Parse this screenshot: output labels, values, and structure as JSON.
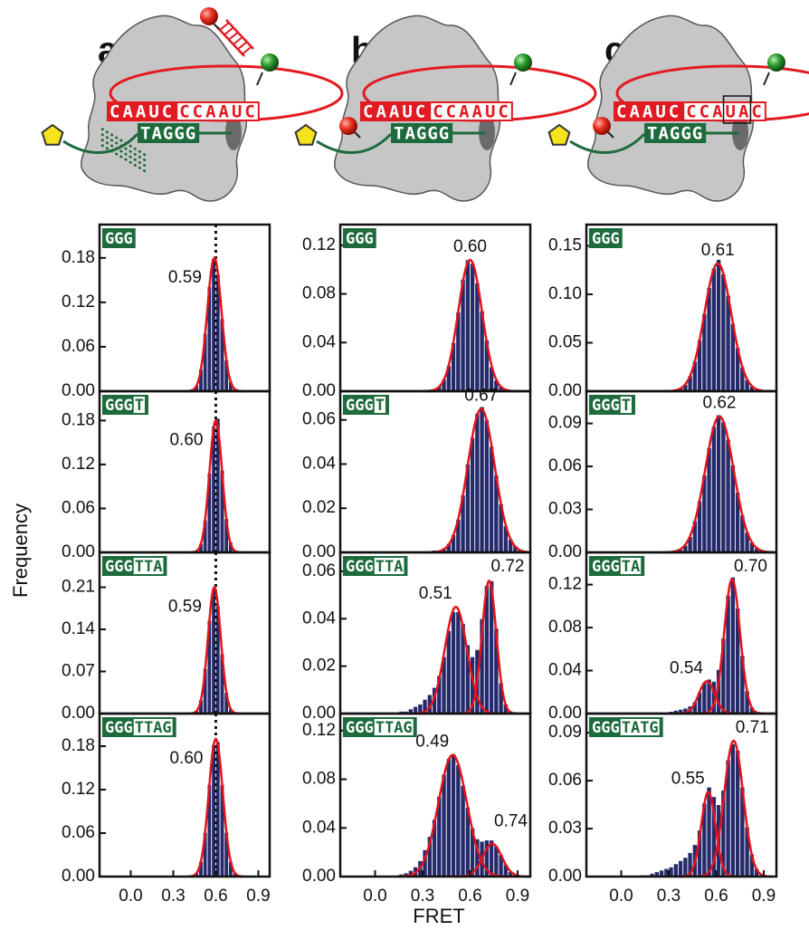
{
  "figure": {
    "xlabel": "FRET",
    "ylabel": "Frequency"
  },
  "diagrams": [
    {
      "label": "a",
      "rna_left": "CAAUC",
      "rna_right": [
        "CCAAUC"
      ],
      "dna": "TAGGG"
    },
    {
      "label": "b",
      "rna_left": "CAAUC",
      "rna_right": [
        "CCAAUC"
      ],
      "dna": "TAGGG"
    },
    {
      "label": "c",
      "rna_left": "CAAUC",
      "rna_right": [
        "CCA",
        "UA",
        "C"
      ],
      "dna": "TAGGG"
    }
  ],
  "chart_data": [
    {
      "type": "histogram",
      "tag": "GGG",
      "xlim": [
        -0.22,
        0.98
      ],
      "ylim": [
        0,
        0.225
      ],
      "yticks": [
        {
          "value": 0,
          "label": "0.00"
        },
        0.06,
        0.12,
        0.18
      ],
      "color": "#252a6b",
      "fit_color": "#e3141b",
      "reference_line": 0.6,
      "bins": [
        0.39,
        0.42,
        0.45,
        0.48,
        0.51,
        0.54,
        0.57,
        0.6,
        0.63,
        0.66,
        0.69,
        0.72,
        0.75,
        0.78
      ],
      "counts": [
        0.001,
        0.002,
        0.008,
        0.03,
        0.078,
        0.141,
        0.179,
        0.158,
        0.098,
        0.042,
        0.013,
        0.003,
        0.001
      ],
      "fits": [
        {
          "center": 0.59,
          "amplitude": 0.18,
          "sigma": 0.05,
          "label": "0.59"
        }
      ]
    },
    {
      "type": "histogram",
      "tag": "GGG",
      "extension": "T",
      "xlim": [
        -0.22,
        0.98
      ],
      "ylim": [
        0,
        0.22
      ],
      "yticks": [
        {
          "value": 0,
          "label": "0.00"
        },
        0.06,
        0.12,
        0.18
      ],
      "color": "#252a6b",
      "fit_color": "#e3141b",
      "reference_line": 0.6,
      "bins": [
        0.42,
        0.45,
        0.48,
        0.51,
        0.54,
        0.57,
        0.6,
        0.63,
        0.66,
        0.69,
        0.72,
        0.75,
        0.78
      ],
      "counts": [
        0.001,
        0.003,
        0.012,
        0.044,
        0.108,
        0.172,
        0.183,
        0.112,
        0.046,
        0.014,
        0.003,
        0.001
      ],
      "fits": [
        {
          "center": 0.6,
          "amplitude": 0.18,
          "sigma": 0.045,
          "label": "0.60"
        }
      ]
    },
    {
      "type": "histogram",
      "tag": "GGG",
      "extension": "TTA",
      "xlim": [
        -0.22,
        0.98
      ],
      "ylim": [
        0,
        0.268
      ],
      "yticks": [
        {
          "value": 0,
          "label": "0.00"
        },
        0.07,
        0.14,
        0.21
      ],
      "color": "#252a6b",
      "fit_color": "#e3141b",
      "reference_line": 0.6,
      "bins": [
        0.42,
        0.45,
        0.48,
        0.51,
        0.54,
        0.57,
        0.6,
        0.63,
        0.66,
        0.69,
        0.72,
        0.75
      ],
      "counts": [
        0.001,
        0.005,
        0.023,
        0.075,
        0.155,
        0.208,
        0.179,
        0.099,
        0.035,
        0.008,
        0.001
      ],
      "fits": [
        {
          "center": 0.59,
          "amplitude": 0.21,
          "sigma": 0.045,
          "label": "0.59"
        }
      ]
    },
    {
      "type": "histogram",
      "tag": "GGG",
      "extension": "TTAG",
      "xlim": [
        -0.22,
        0.98
      ],
      "ylim": [
        0,
        0.225
      ],
      "yticks": [
        {
          "value": 0,
          "label": "0.00"
        },
        0.06,
        0.12,
        0.18
      ],
      "xticks": [
        {
          "value": 0,
          "label": "0.0"
        },
        0.3,
        0.6,
        0.9
      ],
      "color": "#252a6b",
      "fit_color": "#e3141b",
      "reference_line": 0.6,
      "bins": [
        0.42,
        0.45,
        0.48,
        0.51,
        0.54,
        0.57,
        0.6,
        0.63,
        0.66,
        0.69,
        0.72,
        0.75,
        0.78
      ],
      "counts": [
        0.001,
        0.005,
        0.021,
        0.061,
        0.127,
        0.182,
        0.186,
        0.127,
        0.061,
        0.021,
        0.005,
        0.001
      ],
      "fits": [
        {
          "center": 0.6,
          "amplitude": 0.19,
          "sigma": 0.05,
          "label": "0.60"
        }
      ]
    },
    {
      "type": "histogram",
      "tag": "GGG",
      "xlim": [
        -0.22,
        0.98
      ],
      "ylim": [
        0,
        0.137
      ],
      "yticks": [
        {
          "value": 0,
          "label": "0.00"
        },
        0.04,
        0.08,
        0.12
      ],
      "color": "#252a6b",
      "fit_color": "#e3141b",
      "bins": [
        0.33,
        0.36,
        0.39,
        0.42,
        0.45,
        0.48,
        0.51,
        0.54,
        0.57,
        0.6,
        0.63,
        0.66,
        0.69,
        0.72,
        0.75,
        0.78,
        0.81,
        0.84,
        0.87
      ],
      "counts": [
        0.001,
        0.001,
        0.004,
        0.01,
        0.021,
        0.04,
        0.065,
        0.092,
        0.108,
        0.105,
        0.089,
        0.066,
        0.042,
        0.02,
        0.009,
        0.004,
        0.001,
        0.001
      ],
      "fits": [
        {
          "center": 0.6,
          "amplitude": 0.108,
          "sigma": 0.075,
          "label": "0.60"
        }
      ]
    },
    {
      "type": "histogram",
      "tag": "GGG",
      "extension": "T",
      "xlim": [
        -0.22,
        0.98
      ],
      "ylim": [
        0,
        0.073
      ],
      "yticks": [
        {
          "value": 0,
          "label": "0.00"
        },
        0.02,
        0.04,
        0.06
      ],
      "color": "#252a6b",
      "fit_color": "#e3141b",
      "bins": [
        0.36,
        0.39,
        0.42,
        0.45,
        0.48,
        0.51,
        0.54,
        0.57,
        0.6,
        0.63,
        0.66,
        0.69,
        0.72,
        0.75,
        0.78,
        0.81,
        0.84,
        0.87,
        0.9,
        0.93
      ],
      "counts": [
        0.001,
        0.001,
        0.002,
        0.004,
        0.008,
        0.015,
        0.026,
        0.04,
        0.052,
        0.063,
        0.066,
        0.06,
        0.048,
        0.035,
        0.022,
        0.012,
        0.006,
        0.003,
        0.001
      ],
      "fits": [
        {
          "center": 0.67,
          "amplitude": 0.065,
          "sigma": 0.085,
          "label": "0.67"
        }
      ]
    },
    {
      "type": "histogram",
      "tag": "GGG",
      "extension": "TTA",
      "xlim": [
        -0.22,
        0.98
      ],
      "ylim": [
        0,
        0.068
      ],
      "yticks": [
        {
          "value": 0,
          "label": "0.00"
        },
        0.02,
        0.04,
        0.06
      ],
      "color": "#252a6b",
      "fit_color": "#e3141b",
      "bins": [
        0.15,
        0.18,
        0.21,
        0.24,
        0.27,
        0.3,
        0.33,
        0.36,
        0.39,
        0.42,
        0.45,
        0.48,
        0.51,
        0.54,
        0.57,
        0.6,
        0.63,
        0.66,
        0.69,
        0.72,
        0.75,
        0.78,
        0.81,
        0.84,
        0.87
      ],
      "counts": [
        0.001,
        0.001,
        0.002,
        0.003,
        0.004,
        0.006,
        0.008,
        0.011,
        0.016,
        0.024,
        0.035,
        0.043,
        0.043,
        0.038,
        0.029,
        0.024,
        0.027,
        0.04,
        0.054,
        0.056,
        0.036,
        0.013,
        0.004,
        0.001
      ],
      "fits": [
        {
          "center": 0.51,
          "amplitude": 0.045,
          "sigma": 0.07,
          "label": "0.51"
        },
        {
          "center": 0.72,
          "amplitude": 0.056,
          "sigma": 0.045,
          "label": "0.72"
        }
      ]
    },
    {
      "type": "histogram",
      "tag": "GGG",
      "extension": "TTAG",
      "xlim": [
        -0.22,
        0.98
      ],
      "ylim": [
        0,
        0.134
      ],
      "yticks": [
        {
          "value": 0,
          "label": "0.00"
        },
        0.04,
        0.08,
        0.12
      ],
      "xticks": [
        {
          "value": 0,
          "label": "0.0"
        },
        0.3,
        0.6,
        0.9
      ],
      "color": "#252a6b",
      "fit_color": "#e3141b",
      "bins": [
        0.09,
        0.12,
        0.15,
        0.18,
        0.21,
        0.24,
        0.27,
        0.3,
        0.33,
        0.36,
        0.39,
        0.42,
        0.45,
        0.48,
        0.51,
        0.54,
        0.57,
        0.6,
        0.63,
        0.66,
        0.69,
        0.72,
        0.75,
        0.78,
        0.81,
        0.84,
        0.87,
        0.9,
        0.93
      ],
      "counts": [
        0.001,
        0.001,
        0.002,
        0.003,
        0.005,
        0.008,
        0.013,
        0.022,
        0.033,
        0.047,
        0.066,
        0.084,
        0.097,
        0.101,
        0.092,
        0.075,
        0.057,
        0.04,
        0.031,
        0.029,
        0.03,
        0.03,
        0.025,
        0.018,
        0.01,
        0.004,
        0.002,
        0.001
      ],
      "fits": [
        {
          "center": 0.49,
          "amplitude": 0.1,
          "sigma": 0.09,
          "label": "0.49"
        },
        {
          "center": 0.74,
          "amplitude": 0.027,
          "sigma": 0.06,
          "label": "0.74"
        }
      ]
    },
    {
      "type": "histogram",
      "tag": "GGG",
      "xlim": [
        -0.22,
        0.98
      ],
      "ylim": [
        0,
        0.172
      ],
      "yticks": [
        {
          "value": 0,
          "label": "0.00"
        },
        0.05,
        {
          "value": 0.1,
          "label": "0.10"
        },
        0.15
      ],
      "color": "#252a6b",
      "fit_color": "#e3141b",
      "bins": [
        0.33,
        0.36,
        0.39,
        0.42,
        0.45,
        0.48,
        0.51,
        0.54,
        0.57,
        0.6,
        0.63,
        0.66,
        0.69,
        0.72,
        0.75,
        0.78,
        0.81,
        0.84,
        0.87,
        0.9
      ],
      "counts": [
        0.001,
        0.003,
        0.007,
        0.016,
        0.031,
        0.053,
        0.08,
        0.107,
        0.127,
        0.136,
        0.121,
        0.099,
        0.07,
        0.045,
        0.025,
        0.012,
        0.005,
        0.002,
        0.001
      ],
      "fits": [
        {
          "center": 0.61,
          "amplitude": 0.132,
          "sigma": 0.085,
          "label": "0.61"
        }
      ]
    },
    {
      "type": "histogram",
      "tag": "GGG",
      "extension": "T",
      "xlim": [
        -0.22,
        0.98
      ],
      "ylim": [
        0,
        0.1125
      ],
      "yticks": [
        {
          "value": 0,
          "label": "0.00"
        },
        0.03,
        0.06,
        0.09
      ],
      "color": "#252a6b",
      "fit_color": "#e3141b",
      "bins": [
        0.3,
        0.33,
        0.36,
        0.39,
        0.42,
        0.45,
        0.48,
        0.51,
        0.54,
        0.57,
        0.6,
        0.63,
        0.66,
        0.69,
        0.72,
        0.75,
        0.78,
        0.81,
        0.84,
        0.87,
        0.9,
        0.93
      ],
      "counts": [
        0.001,
        0.001,
        0.002,
        0.005,
        0.011,
        0.022,
        0.036,
        0.054,
        0.073,
        0.088,
        0.096,
        0.091,
        0.079,
        0.061,
        0.042,
        0.026,
        0.014,
        0.007,
        0.003,
        0.001,
        0.001
      ],
      "fits": [
        {
          "center": 0.62,
          "amplitude": 0.095,
          "sigma": 0.09,
          "label": "0.62"
        }
      ]
    },
    {
      "type": "histogram",
      "tag": "GGG",
      "extension": "TA",
      "xlim": [
        -0.22,
        0.98
      ],
      "ylim": [
        0,
        0.15
      ],
      "yticks": [
        {
          "value": 0,
          "label": "0.00"
        },
        0.04,
        0.08,
        0.12
      ],
      "color": "#252a6b",
      "fit_color": "#e3141b",
      "bins": [
        0.27,
        0.3,
        0.33,
        0.36,
        0.39,
        0.42,
        0.45,
        0.48,
        0.51,
        0.54,
        0.57,
        0.6,
        0.63,
        0.66,
        0.69,
        0.72,
        0.75,
        0.78,
        0.81,
        0.84,
        0.87
      ],
      "counts": [
        0.001,
        0.002,
        0.003,
        0.004,
        0.005,
        0.007,
        0.011,
        0.02,
        0.029,
        0.032,
        0.03,
        0.041,
        0.07,
        0.11,
        0.127,
        0.098,
        0.054,
        0.021,
        0.006,
        0.001
      ],
      "fits": [
        {
          "center": 0.54,
          "amplitude": 0.03,
          "sigma": 0.05,
          "label": "0.54"
        },
        {
          "center": 0.7,
          "amplitude": 0.125,
          "sigma": 0.05,
          "label": "0.70"
        }
      ]
    },
    {
      "type": "histogram",
      "tag": "GGG",
      "extension": "TATG",
      "xlim": [
        -0.22,
        0.98
      ],
      "ylim": [
        0,
        0.102
      ],
      "yticks": [
        {
          "value": 0,
          "label": "0.00"
        },
        0.03,
        0.06,
        0.09
      ],
      "xticks": [
        {
          "value": 0,
          "label": "0.0"
        },
        0.3,
        0.6,
        0.9
      ],
      "color": "#252a6b",
      "fit_color": "#e3141b",
      "bins": [
        0.12,
        0.15,
        0.18,
        0.21,
        0.24,
        0.27,
        0.3,
        0.33,
        0.36,
        0.39,
        0.42,
        0.45,
        0.48,
        0.51,
        0.54,
        0.57,
        0.6,
        0.63,
        0.66,
        0.69,
        0.72,
        0.75,
        0.78,
        0.81,
        0.84,
        0.87,
        0.9
      ],
      "counts": [
        0.001,
        0.001,
        0.002,
        0.003,
        0.004,
        0.005,
        0.006,
        0.008,
        0.01,
        0.012,
        0.015,
        0.02,
        0.029,
        0.046,
        0.056,
        0.05,
        0.045,
        0.054,
        0.073,
        0.083,
        0.079,
        0.056,
        0.031,
        0.014,
        0.005,
        0.001
      ],
      "fits": [
        {
          "center": 0.55,
          "amplitude": 0.053,
          "sigma": 0.045,
          "label": "0.55"
        },
        {
          "center": 0.71,
          "amplitude": 0.085,
          "sigma": 0.06,
          "label": "0.71"
        }
      ]
    }
  ]
}
